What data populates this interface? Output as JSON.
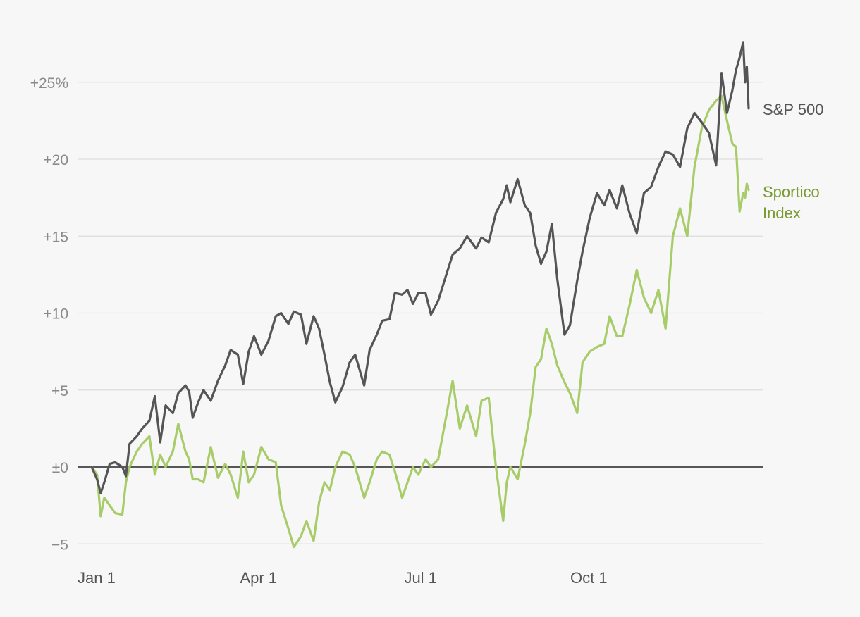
{
  "chart_data": {
    "type": "line",
    "title": "",
    "xlabel": "",
    "ylabel": "",
    "ylim": [
      -5.5,
      28.5
    ],
    "yticks": [
      {
        "value": 25,
        "label": "+25%"
      },
      {
        "value": 20,
        "label": "+20"
      },
      {
        "value": 15,
        "label": "+15"
      },
      {
        "value": 10,
        "label": "+10"
      },
      {
        "value": 5,
        "label": "+5"
      },
      {
        "value": 0,
        "label": "±0"
      },
      {
        "value": -5,
        "label": "−5"
      }
    ],
    "xticks": [
      {
        "date": "2021-01-01",
        "label": "Jan 1"
      },
      {
        "date": "2021-04-01",
        "label": "Apr 1"
      },
      {
        "date": "2021-07-01",
        "label": "Jul 1"
      },
      {
        "date": "2021-10-01",
        "label": "Oct 1"
      }
    ],
    "xlim": [
      "2021-01-01",
      "2021-12-31"
    ],
    "grid": true,
    "legend": "inline labels at line ends (right)",
    "series": [
      {
        "name": "S&P 500",
        "color": "#555555",
        "points": [
          [
            "2021-01-01",
            0.0
          ],
          [
            "2021-01-04",
            -0.8
          ],
          [
            "2021-01-06",
            -1.7
          ],
          [
            "2021-01-08",
            -1.0
          ],
          [
            "2021-01-11",
            0.2
          ],
          [
            "2021-01-14",
            0.3
          ],
          [
            "2021-01-18",
            0.0
          ],
          [
            "2021-01-20",
            -0.6
          ],
          [
            "2021-01-22",
            1.5
          ],
          [
            "2021-01-26",
            2.0
          ],
          [
            "2021-01-29",
            2.5
          ],
          [
            "2021-02-02",
            3.0
          ],
          [
            "2021-02-05",
            4.6
          ],
          [
            "2021-02-08",
            1.6
          ],
          [
            "2021-02-11",
            4.0
          ],
          [
            "2021-02-15",
            3.5
          ],
          [
            "2021-02-18",
            4.8
          ],
          [
            "2021-02-22",
            5.3
          ],
          [
            "2021-02-24",
            4.9
          ],
          [
            "2021-02-26",
            3.2
          ],
          [
            "2021-03-01",
            4.2
          ],
          [
            "2021-03-04",
            5.0
          ],
          [
            "2021-03-08",
            4.3
          ],
          [
            "2021-03-12",
            5.6
          ],
          [
            "2021-03-16",
            6.6
          ],
          [
            "2021-03-19",
            7.6
          ],
          [
            "2021-03-23",
            7.3
          ],
          [
            "2021-03-26",
            5.4
          ],
          [
            "2021-03-29",
            7.5
          ],
          [
            "2021-04-01",
            8.5
          ],
          [
            "2021-04-05",
            7.3
          ],
          [
            "2021-04-09",
            8.2
          ],
          [
            "2021-04-13",
            9.8
          ],
          [
            "2021-04-16",
            10.0
          ],
          [
            "2021-04-20",
            9.3
          ],
          [
            "2021-04-23",
            10.1
          ],
          [
            "2021-04-27",
            9.9
          ],
          [
            "2021-04-30",
            8.0
          ],
          [
            "2021-05-04",
            9.8
          ],
          [
            "2021-05-07",
            9.0
          ],
          [
            "2021-05-10",
            7.3
          ],
          [
            "2021-05-13",
            5.5
          ],
          [
            "2021-05-16",
            4.2
          ],
          [
            "2021-05-20",
            5.2
          ],
          [
            "2021-05-24",
            6.8
          ],
          [
            "2021-05-27",
            7.3
          ],
          [
            "2021-06-01",
            5.3
          ],
          [
            "2021-06-04",
            7.6
          ],
          [
            "2021-06-08",
            8.6
          ],
          [
            "2021-06-11",
            9.5
          ],
          [
            "2021-06-15",
            9.6
          ],
          [
            "2021-06-18",
            11.3
          ],
          [
            "2021-06-22",
            11.2
          ],
          [
            "2021-06-25",
            11.5
          ],
          [
            "2021-06-28",
            10.6
          ],
          [
            "2021-07-01",
            11.3
          ],
          [
            "2021-07-05",
            11.3
          ],
          [
            "2021-07-08",
            9.9
          ],
          [
            "2021-07-12",
            10.8
          ],
          [
            "2021-07-16",
            12.3
          ],
          [
            "2021-07-20",
            13.8
          ],
          [
            "2021-07-24",
            14.2
          ],
          [
            "2021-07-28",
            15.0
          ],
          [
            "2021-08-02",
            14.2
          ],
          [
            "2021-08-05",
            14.9
          ],
          [
            "2021-08-09",
            14.6
          ],
          [
            "2021-08-13",
            16.5
          ],
          [
            "2021-08-17",
            17.4
          ],
          [
            "2021-08-19",
            18.3
          ],
          [
            "2021-08-21",
            17.2
          ],
          [
            "2021-08-25",
            18.7
          ],
          [
            "2021-08-29",
            17.0
          ],
          [
            "2021-09-01",
            16.5
          ],
          [
            "2021-09-04",
            14.4
          ],
          [
            "2021-09-07",
            13.2
          ],
          [
            "2021-09-10",
            14.0
          ],
          [
            "2021-09-13",
            15.8
          ],
          [
            "2021-09-16",
            12.2
          ],
          [
            "2021-09-20",
            8.6
          ],
          [
            "2021-09-23",
            9.2
          ],
          [
            "2021-09-27",
            12.1
          ],
          [
            "2021-09-30",
            14.0
          ],
          [
            "2021-10-04",
            16.2
          ],
          [
            "2021-10-08",
            17.8
          ],
          [
            "2021-10-12",
            17.0
          ],
          [
            "2021-10-15",
            18.0
          ],
          [
            "2021-10-19",
            16.8
          ],
          [
            "2021-10-22",
            18.3
          ],
          [
            "2021-10-26",
            16.5
          ],
          [
            "2021-10-30",
            15.2
          ],
          [
            "2021-11-03",
            17.8
          ],
          [
            "2021-11-07",
            18.2
          ],
          [
            "2021-11-11",
            19.5
          ],
          [
            "2021-11-15",
            20.5
          ],
          [
            "2021-11-19",
            20.3
          ],
          [
            "2021-11-23",
            19.5
          ],
          [
            "2021-11-27",
            22.0
          ],
          [
            "2021-12-01",
            23.0
          ],
          [
            "2021-12-05",
            22.4
          ],
          [
            "2021-12-09",
            21.7
          ],
          [
            "2021-12-13",
            19.6
          ],
          [
            "2021-12-16",
            25.6
          ],
          [
            "2021-12-19",
            23.0
          ],
          [
            "2021-12-22",
            24.5
          ],
          [
            "2021-12-24",
            25.8
          ],
          [
            "2021-12-26",
            26.6
          ],
          [
            "2021-12-28",
            27.6
          ],
          [
            "2021-12-29",
            25.0
          ],
          [
            "2021-12-30",
            26.0
          ],
          [
            "2021-12-31",
            23.3
          ]
        ]
      },
      {
        "name": "Sportico Index",
        "color": "#a8cc6a",
        "points": [
          [
            "2021-01-01",
            0.0
          ],
          [
            "2021-01-04",
            -0.5
          ],
          [
            "2021-01-06",
            -3.2
          ],
          [
            "2021-01-08",
            -2.0
          ],
          [
            "2021-01-11",
            -2.5
          ],
          [
            "2021-01-14",
            -3.0
          ],
          [
            "2021-01-18",
            -3.1
          ],
          [
            "2021-01-20",
            -1.0
          ],
          [
            "2021-01-22",
            0.0
          ],
          [
            "2021-01-26",
            1.0
          ],
          [
            "2021-01-29",
            1.5
          ],
          [
            "2021-02-02",
            2.0
          ],
          [
            "2021-02-05",
            -0.5
          ],
          [
            "2021-02-08",
            0.8
          ],
          [
            "2021-02-11",
            0.0
          ],
          [
            "2021-02-15",
            1.0
          ],
          [
            "2021-02-18",
            2.8
          ],
          [
            "2021-02-22",
            1.0
          ],
          [
            "2021-02-24",
            0.5
          ],
          [
            "2021-02-26",
            -0.8
          ],
          [
            "2021-03-01",
            -0.8
          ],
          [
            "2021-03-04",
            -1.0
          ],
          [
            "2021-03-08",
            1.3
          ],
          [
            "2021-03-12",
            -0.7
          ],
          [
            "2021-03-16",
            0.2
          ],
          [
            "2021-03-19",
            -0.5
          ],
          [
            "2021-03-23",
            -2.0
          ],
          [
            "2021-03-26",
            1.0
          ],
          [
            "2021-03-29",
            -1.0
          ],
          [
            "2021-04-01",
            -0.5
          ],
          [
            "2021-04-05",
            1.3
          ],
          [
            "2021-04-09",
            0.5
          ],
          [
            "2021-04-13",
            0.3
          ],
          [
            "2021-04-16",
            -2.5
          ],
          [
            "2021-04-20",
            -4.0
          ],
          [
            "2021-04-23",
            -5.2
          ],
          [
            "2021-04-27",
            -4.5
          ],
          [
            "2021-04-30",
            -3.5
          ],
          [
            "2021-05-04",
            -4.8
          ],
          [
            "2021-05-07",
            -2.3
          ],
          [
            "2021-05-10",
            -1.0
          ],
          [
            "2021-05-13",
            -1.5
          ],
          [
            "2021-05-16",
            0.0
          ],
          [
            "2021-05-20",
            1.0
          ],
          [
            "2021-05-24",
            0.8
          ],
          [
            "2021-05-27",
            0.0
          ],
          [
            "2021-06-01",
            -2.0
          ],
          [
            "2021-06-04",
            -1.0
          ],
          [
            "2021-06-08",
            0.5
          ],
          [
            "2021-06-11",
            1.0
          ],
          [
            "2021-06-15",
            0.8
          ],
          [
            "2021-06-18",
            -0.3
          ],
          [
            "2021-06-22",
            -2.0
          ],
          [
            "2021-06-25",
            -1.0
          ],
          [
            "2021-06-28",
            0.0
          ],
          [
            "2021-07-01",
            -0.5
          ],
          [
            "2021-07-05",
            0.5
          ],
          [
            "2021-07-08",
            0.0
          ],
          [
            "2021-07-12",
            0.5
          ],
          [
            "2021-07-16",
            3.0
          ],
          [
            "2021-07-20",
            5.6
          ],
          [
            "2021-07-24",
            2.5
          ],
          [
            "2021-07-28",
            4.0
          ],
          [
            "2021-08-02",
            2.0
          ],
          [
            "2021-08-05",
            4.3
          ],
          [
            "2021-08-09",
            4.5
          ],
          [
            "2021-08-13",
            0.0
          ],
          [
            "2021-08-17",
            -3.5
          ],
          [
            "2021-08-19",
            -1.0
          ],
          [
            "2021-08-21",
            0.0
          ],
          [
            "2021-08-25",
            -0.8
          ],
          [
            "2021-08-29",
            1.5
          ],
          [
            "2021-09-01",
            3.5
          ],
          [
            "2021-09-04",
            6.5
          ],
          [
            "2021-09-07",
            7.0
          ],
          [
            "2021-09-10",
            9.0
          ],
          [
            "2021-09-13",
            8.0
          ],
          [
            "2021-09-16",
            6.6
          ],
          [
            "2021-09-20",
            5.5
          ],
          [
            "2021-09-23",
            4.8
          ],
          [
            "2021-09-27",
            3.5
          ],
          [
            "2021-09-30",
            6.8
          ],
          [
            "2021-10-04",
            7.5
          ],
          [
            "2021-10-08",
            7.8
          ],
          [
            "2021-10-12",
            8.0
          ],
          [
            "2021-10-15",
            9.8
          ],
          [
            "2021-10-19",
            8.5
          ],
          [
            "2021-10-22",
            8.5
          ],
          [
            "2021-10-26",
            10.5
          ],
          [
            "2021-10-30",
            12.8
          ],
          [
            "2021-11-03",
            11.0
          ],
          [
            "2021-11-07",
            10.0
          ],
          [
            "2021-11-11",
            11.5
          ],
          [
            "2021-11-15",
            9.0
          ],
          [
            "2021-11-19",
            15.0
          ],
          [
            "2021-11-23",
            16.8
          ],
          [
            "2021-11-27",
            15.0
          ],
          [
            "2021-12-01",
            19.5
          ],
          [
            "2021-12-05",
            22.0
          ],
          [
            "2021-12-09",
            23.2
          ],
          [
            "2021-12-13",
            23.8
          ],
          [
            "2021-12-16",
            24.1
          ],
          [
            "2021-12-19",
            22.5
          ],
          [
            "2021-12-22",
            21.0
          ],
          [
            "2021-12-24",
            20.8
          ],
          [
            "2021-12-26",
            16.6
          ],
          [
            "2021-12-28",
            17.8
          ],
          [
            "2021-12-29",
            17.5
          ],
          [
            "2021-12-30",
            18.4
          ],
          [
            "2021-12-31",
            18.0
          ]
        ]
      }
    ],
    "labels": {
      "sp500": "S&P 500",
      "sportico_line1": "Sportico",
      "sportico_line2": "Index"
    },
    "colors": {
      "grid": "#dddddd",
      "zero_line": "#222222",
      "tick_label": "#8a8a8a",
      "sp500_label": "#555555",
      "sportico_label": "#7a9a32"
    }
  }
}
